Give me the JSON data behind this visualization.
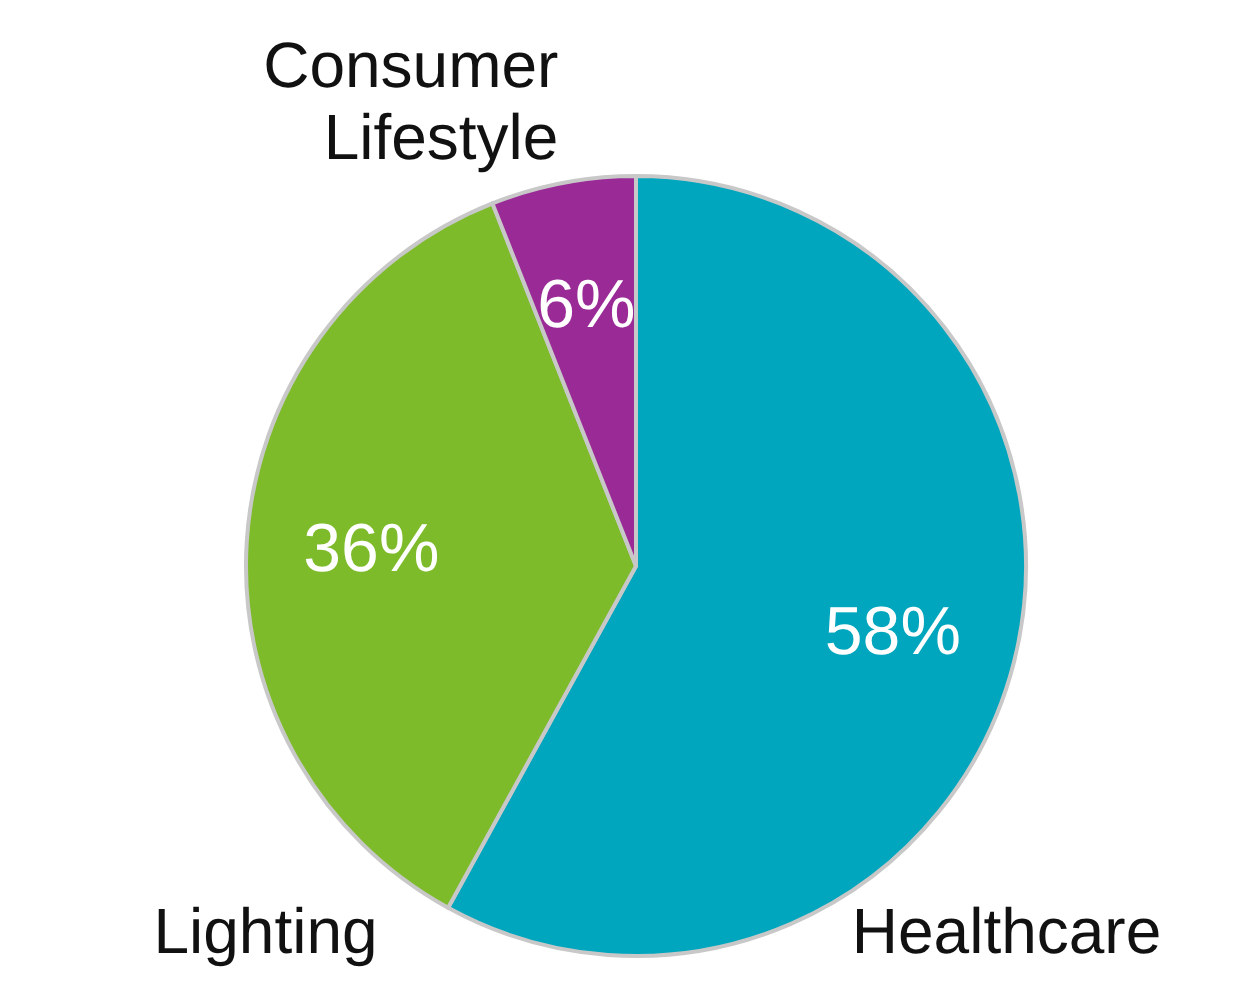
{
  "chart_data": {
    "type": "pie",
    "categories": [
      "Healthcare",
      "Lighting",
      "Consumer Lifestyle"
    ],
    "values": [
      58,
      36,
      6
    ],
    "colors": [
      "#00a6bd",
      "#7dbb2a",
      "#9a2a96"
    ],
    "value_labels": [
      "58%",
      "36%",
      "6%"
    ],
    "legend": false
  }
}
